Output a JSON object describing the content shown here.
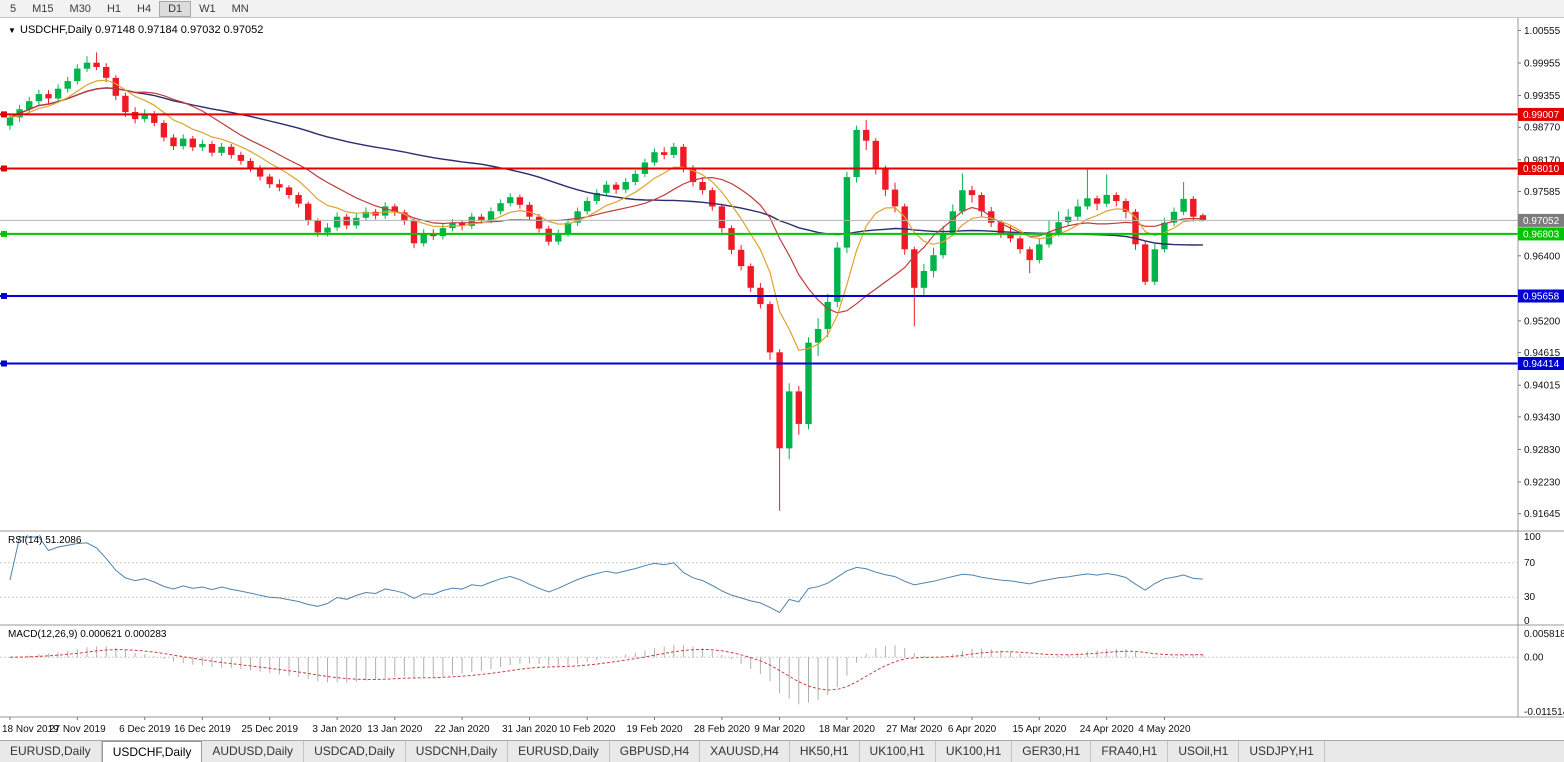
{
  "toolbar": {
    "timeframes": [
      "5",
      "M15",
      "M30",
      "H1",
      "H4",
      "D1",
      "W1",
      "MN"
    ],
    "active_index": 5
  },
  "tabs": {
    "items": [
      "EURUSD,Daily",
      "USDCHF,Daily",
      "AUDUSD,Daily",
      "USDCAD,Daily",
      "USDCNH,Daily",
      "EURUSD,Daily",
      "GBPUSD,H4",
      "XAUUSD,H4",
      "HK50,H1",
      "UK100,H1",
      "UK100,H1",
      "GER30,H1",
      "FRA40,H1",
      "USOil,H1",
      "USDJPY,H1"
    ],
    "active_index": 1
  },
  "chart_data": {
    "type": "candlestick",
    "symbol": "USDCHF",
    "timeframe": "Daily",
    "header": {
      "dropdown_icon": "▼",
      "symbol_label": "USDCHF,Daily",
      "open": "0.97148",
      "high": "0.97184",
      "low": "0.97032",
      "close": "0.97052"
    },
    "price_axis": {
      "max": 1.0071,
      "min": 0.914,
      "labels": [
        "1.00555",
        "0.99955",
        "0.99355",
        "0.98770",
        "0.98170",
        "0.97585",
        "0.96400",
        "0.95200",
        "0.94615",
        "0.94015",
        "0.93430",
        "0.92830",
        "0.92230",
        "0.91645"
      ]
    },
    "current_price": {
      "value": 0.97052,
      "label": "0.97052",
      "line_color": "#b4b4b4",
      "badge_color": "#7d7d7d"
    },
    "levels": [
      {
        "price": 0.99007,
        "label": "0.99007",
        "color": "#e00000"
      },
      {
        "price": 0.9801,
        "label": "0.98010",
        "color": "#e00000"
      },
      {
        "price": 0.96803,
        "label": "0.96803",
        "color": "#00c400"
      },
      {
        "price": 0.95658,
        "label": "0.95658",
        "color": "#0000d4"
      },
      {
        "price": 0.94414,
        "label": "0.94414",
        "color": "#0000d4"
      }
    ],
    "colors": {
      "up": "#00b44c",
      "down": "#ef1a24",
      "ma_fast": "#dfa32f",
      "ma_mid": "#c43a3a",
      "ma_slow": "#2b2e6e",
      "rsi": "#4f83ad",
      "macd_bar": "#b0b0b0",
      "macd_signal": "#d04040"
    },
    "moving_averages": [
      {
        "type": "ema",
        "period": 8
      },
      {
        "type": "sma",
        "period": 14
      },
      {
        "type": "sma",
        "period": 50
      }
    ],
    "date_labels": [
      {
        "label": "18 Nov 2019",
        "i": 0
      },
      {
        "label": "27 Nov 2019",
        "i": 7
      },
      {
        "label": "6 Dec 2019",
        "i": 14
      },
      {
        "label": "16 Dec 2019",
        "i": 20
      },
      {
        "label": "25 Dec 2019",
        "i": 27
      },
      {
        "label": "3 Jan 2020",
        "i": 34
      },
      {
        "label": "13 Jan 2020",
        "i": 40
      },
      {
        "label": "22 Jan 2020",
        "i": 47
      },
      {
        "label": "31 Jan 2020",
        "i": 54
      },
      {
        "label": "10 Feb 2020",
        "i": 60
      },
      {
        "label": "19 Feb 2020",
        "i": 67
      },
      {
        "label": "28 Feb 2020",
        "i": 74
      },
      {
        "label": "9 Mar 2020",
        "i": 80
      },
      {
        "label": "18 Mar 2020",
        "i": 87
      },
      {
        "label": "27 Mar 2020",
        "i": 94
      },
      {
        "label": "6 Apr 2020",
        "i": 100
      },
      {
        "label": "15 Apr 2020",
        "i": 107
      },
      {
        "label": "24 Apr 2020",
        "i": 114
      },
      {
        "label": "4 May 2020",
        "i": 120
      }
    ],
    "rsi": {
      "label": "RSI(14)",
      "value": "51.2086",
      "period": 14,
      "axis_labels": [
        "100",
        "70",
        "30",
        "0"
      ],
      "level_lines": [
        70,
        30
      ]
    },
    "macd": {
      "label": "MACD(12,26,9)",
      "values": "0.000621 0.000283",
      "fast": 12,
      "slow": 26,
      "signal": 9,
      "axis": {
        "top": "0.005818",
        "top_value": 0.005818,
        "zero": "0.00",
        "bottom": "-0.011514",
        "bottom_value": -0.011514
      }
    },
    "candles": [
      [
        0.988,
        0.9902,
        0.9872,
        0.9895
      ],
      [
        0.9895,
        0.9918,
        0.9887,
        0.991
      ],
      [
        0.991,
        0.9933,
        0.9903,
        0.9925
      ],
      [
        0.9925,
        0.9946,
        0.9918,
        0.9938
      ],
      [
        0.9938,
        0.9945,
        0.9921,
        0.993
      ],
      [
        0.993,
        0.9956,
        0.9923,
        0.9948
      ],
      [
        0.9948,
        0.997,
        0.9941,
        0.9962
      ],
      [
        0.9962,
        0.9993,
        0.9956,
        0.9985
      ],
      [
        0.9985,
        1.0008,
        0.9979,
        0.9996
      ],
      [
        0.9996,
        1.0015,
        0.9982,
        0.9988
      ],
      [
        0.9988,
        0.9995,
        0.996,
        0.9968
      ],
      [
        0.9968,
        0.9973,
        0.9927,
        0.9935
      ],
      [
        0.9935,
        0.9941,
        0.9896,
        0.9905
      ],
      [
        0.9905,
        0.9914,
        0.9884,
        0.9892
      ],
      [
        0.9892,
        0.991,
        0.9886,
        0.9902
      ],
      [
        0.9902,
        0.9907,
        0.9879,
        0.9885
      ],
      [
        0.9885,
        0.989,
        0.9851,
        0.9858
      ],
      [
        0.9858,
        0.9864,
        0.9835,
        0.9842
      ],
      [
        0.9842,
        0.9864,
        0.9836,
        0.9856
      ],
      [
        0.9856,
        0.9861,
        0.9833,
        0.984
      ],
      [
        0.984,
        0.9854,
        0.9833,
        0.9846
      ],
      [
        0.9846,
        0.9851,
        0.9823,
        0.983
      ],
      [
        0.983,
        0.9848,
        0.9824,
        0.9841
      ],
      [
        0.9841,
        0.9846,
        0.9819,
        0.9826
      ],
      [
        0.9826,
        0.9832,
        0.9808,
        0.9815
      ],
      [
        0.9815,
        0.982,
        0.9795,
        0.9802
      ],
      [
        0.9802,
        0.9807,
        0.9779,
        0.9786
      ],
      [
        0.9786,
        0.9791,
        0.9765,
        0.9772
      ],
      [
        0.9772,
        0.9781,
        0.9759,
        0.9766
      ],
      [
        0.9766,
        0.977,
        0.9745,
        0.9752
      ],
      [
        0.9752,
        0.9757,
        0.9729,
        0.9736
      ],
      [
        0.9736,
        0.974,
        0.9696,
        0.9705
      ],
      [
        0.9705,
        0.9709,
        0.9675,
        0.9683
      ],
      [
        0.9683,
        0.97,
        0.9676,
        0.9692
      ],
      [
        0.9692,
        0.972,
        0.9686,
        0.9712
      ],
      [
        0.9712,
        0.9717,
        0.9689,
        0.9696
      ],
      [
        0.9696,
        0.9718,
        0.969,
        0.971
      ],
      [
        0.971,
        0.9729,
        0.9704,
        0.9721
      ],
      [
        0.9721,
        0.9726,
        0.9707,
        0.9714
      ],
      [
        0.9714,
        0.9739,
        0.9708,
        0.9731
      ],
      [
        0.9731,
        0.9736,
        0.9713,
        0.972
      ],
      [
        0.972,
        0.9725,
        0.9697,
        0.9704
      ],
      [
        0.9704,
        0.9709,
        0.9654,
        0.9663
      ],
      [
        0.9663,
        0.9689,
        0.9657,
        0.9681
      ],
      [
        0.9681,
        0.9689,
        0.9669,
        0.9676
      ],
      [
        0.9676,
        0.9698,
        0.967,
        0.9691
      ],
      [
        0.9691,
        0.9708,
        0.9685,
        0.9701
      ],
      [
        0.9701,
        0.9706,
        0.9687,
        0.9695
      ],
      [
        0.9695,
        0.9719,
        0.9689,
        0.9712
      ],
      [
        0.9712,
        0.9717,
        0.9699,
        0.9706
      ],
      [
        0.9706,
        0.9729,
        0.97,
        0.9722
      ],
      [
        0.9722,
        0.9744,
        0.9716,
        0.9737
      ],
      [
        0.9737,
        0.9755,
        0.9731,
        0.9748
      ],
      [
        0.9748,
        0.9753,
        0.9727,
        0.9734
      ],
      [
        0.9734,
        0.9739,
        0.9705,
        0.9712
      ],
      [
        0.9712,
        0.9717,
        0.9683,
        0.969
      ],
      [
        0.969,
        0.9695,
        0.9659,
        0.9666
      ],
      [
        0.9666,
        0.9688,
        0.966,
        0.9681
      ],
      [
        0.9681,
        0.9708,
        0.9675,
        0.9701
      ],
      [
        0.9701,
        0.9729,
        0.9695,
        0.9722
      ],
      [
        0.9722,
        0.9748,
        0.9716,
        0.9741
      ],
      [
        0.9741,
        0.9763,
        0.9735,
        0.9756
      ],
      [
        0.9756,
        0.9778,
        0.975,
        0.9771
      ],
      [
        0.9771,
        0.9776,
        0.9754,
        0.9762
      ],
      [
        0.9762,
        0.9783,
        0.9756,
        0.9776
      ],
      [
        0.9776,
        0.9798,
        0.977,
        0.9791
      ],
      [
        0.9791,
        0.9819,
        0.9785,
        0.9812
      ],
      [
        0.9812,
        0.9838,
        0.9806,
        0.9831
      ],
      [
        0.9831,
        0.984,
        0.9818,
        0.9826
      ],
      [
        0.9826,
        0.9848,
        0.982,
        0.9841
      ],
      [
        0.9841,
        0.9846,
        0.9794,
        0.9802
      ],
      [
        0.9802,
        0.9807,
        0.9768,
        0.9776
      ],
      [
        0.9776,
        0.9785,
        0.9753,
        0.9761
      ],
      [
        0.9761,
        0.9766,
        0.9723,
        0.9731
      ],
      [
        0.9731,
        0.9736,
        0.9683,
        0.9691
      ],
      [
        0.9691,
        0.9696,
        0.9643,
        0.9651
      ],
      [
        0.9651,
        0.966,
        0.9613,
        0.9621
      ],
      [
        0.9621,
        0.9626,
        0.9573,
        0.9581
      ],
      [
        0.9581,
        0.959,
        0.9543,
        0.9551
      ],
      [
        0.9551,
        0.9556,
        0.9448,
        0.9462
      ],
      [
        0.9462,
        0.9468,
        0.917,
        0.9285
      ],
      [
        0.9285,
        0.9405,
        0.9265,
        0.939
      ],
      [
        0.939,
        0.94,
        0.931,
        0.933
      ],
      [
        0.933,
        0.949,
        0.932,
        0.948
      ],
      [
        0.948,
        0.9525,
        0.9455,
        0.9505
      ],
      [
        0.9505,
        0.957,
        0.949,
        0.9555
      ],
      [
        0.9555,
        0.9665,
        0.9545,
        0.9655
      ],
      [
        0.9655,
        0.9795,
        0.9645,
        0.9785
      ],
      [
        0.9785,
        0.988,
        0.9775,
        0.9872
      ],
      [
        0.9872,
        0.989,
        0.9835,
        0.9852
      ],
      [
        0.9852,
        0.9857,
        0.979,
        0.9801
      ],
      [
        0.9801,
        0.9806,
        0.975,
        0.9762
      ],
      [
        0.9762,
        0.9775,
        0.972,
        0.9731
      ],
      [
        0.9731,
        0.9736,
        0.9642,
        0.9652
      ],
      [
        0.9652,
        0.9657,
        0.951,
        0.9581
      ],
      [
        0.9581,
        0.9625,
        0.9565,
        0.9612
      ],
      [
        0.9612,
        0.9655,
        0.96,
        0.9641
      ],
      [
        0.9641,
        0.9695,
        0.9635,
        0.9682
      ],
      [
        0.9682,
        0.9735,
        0.9676,
        0.9722
      ],
      [
        0.9722,
        0.9792,
        0.9716,
        0.9761
      ],
      [
        0.9761,
        0.9769,
        0.9738,
        0.9752
      ],
      [
        0.9752,
        0.9757,
        0.9712,
        0.9722
      ],
      [
        0.9722,
        0.973,
        0.9693,
        0.9701
      ],
      [
        0.9701,
        0.9706,
        0.9673,
        0.9682
      ],
      [
        0.9682,
        0.9695,
        0.9665,
        0.9672
      ],
      [
        0.9672,
        0.9677,
        0.9644,
        0.9652
      ],
      [
        0.9652,
        0.9657,
        0.9608,
        0.9632
      ],
      [
        0.9632,
        0.9672,
        0.9626,
        0.9661
      ],
      [
        0.9661,
        0.9705,
        0.9655,
        0.9682
      ],
      [
        0.9682,
        0.9722,
        0.9676,
        0.9702
      ],
      [
        0.9702,
        0.9726,
        0.9696,
        0.9712
      ],
      [
        0.9712,
        0.9744,
        0.9706,
        0.9731
      ],
      [
        0.9731,
        0.98,
        0.9725,
        0.9746
      ],
      [
        0.9746,
        0.9751,
        0.9724,
        0.9736
      ],
      [
        0.9736,
        0.979,
        0.973,
        0.9752
      ],
      [
        0.9752,
        0.9757,
        0.9731,
        0.9741
      ],
      [
        0.9741,
        0.9746,
        0.9709,
        0.9721
      ],
      [
        0.9721,
        0.9726,
        0.9651,
        0.9661
      ],
      [
        0.9661,
        0.9666,
        0.9586,
        0.9592
      ],
      [
        0.9592,
        0.9662,
        0.9586,
        0.9652
      ],
      [
        0.9652,
        0.971,
        0.9646,
        0.9701
      ],
      [
        0.9701,
        0.9729,
        0.9695,
        0.9721
      ],
      [
        0.9721,
        0.9776,
        0.9715,
        0.9745
      ],
      [
        0.9745,
        0.975,
        0.9703,
        0.9712
      ],
      [
        0.97148,
        0.97184,
        0.97032,
        0.97052
      ]
    ]
  }
}
